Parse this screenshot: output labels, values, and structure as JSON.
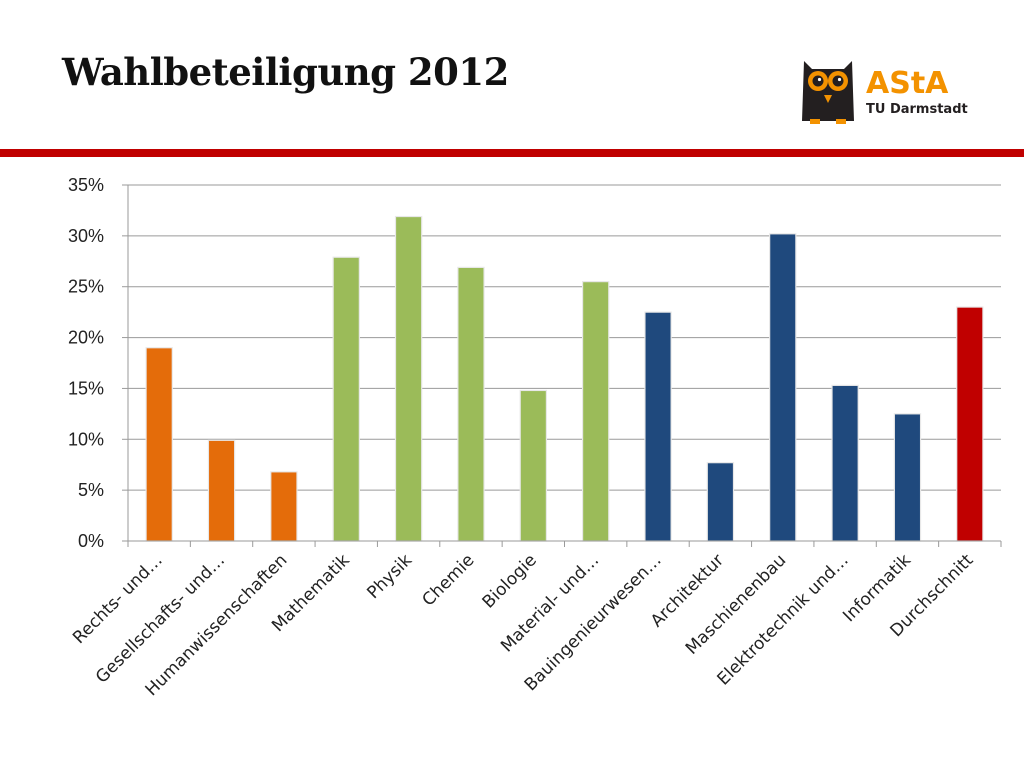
{
  "slide": {
    "title": "Wahlbeteiligung 2012"
  },
  "logo": {
    "wordmark": "AStA",
    "subtitle": "TU Darmstadt",
    "icon": "owl-icon",
    "colors": {
      "owl_body": "#231f20",
      "accent": "#f39200"
    }
  },
  "divider_color": "#c00000",
  "chart_data": {
    "type": "bar",
    "title": "",
    "xlabel": "",
    "ylabel": "",
    "ylim": [
      0,
      0.35
    ],
    "y_ticks": [
      0,
      0.05,
      0.1,
      0.15,
      0.2,
      0.25,
      0.3,
      0.35
    ],
    "y_tick_labels": [
      "0%",
      "5%",
      "10%",
      "15%",
      "20%",
      "25%",
      "30%",
      "35%"
    ],
    "grid": true,
    "legend": "none",
    "categories": [
      "Rechts- und…",
      "Gesellschafts- und…",
      "Humanwissenschaften",
      "Mathematik",
      "Physik",
      "Chemie",
      "Biologie",
      "Material- und…",
      "Bauingenieurwesen…",
      "Architektur",
      "Maschienenbau",
      "Elektrotechnik und…",
      "Informatik",
      "Durchschnitt"
    ],
    "values": [
      0.19,
      0.099,
      0.068,
      0.279,
      0.319,
      0.269,
      0.148,
      0.255,
      0.225,
      0.077,
      0.302,
      0.153,
      0.125,
      0.23
    ],
    "colors": [
      "#e46c0a",
      "#e46c0a",
      "#e46c0a",
      "#9bbb59",
      "#9bbb59",
      "#9bbb59",
      "#9bbb59",
      "#9bbb59",
      "#1f497d",
      "#1f497d",
      "#1f497d",
      "#1f497d",
      "#1f497d",
      "#c00000"
    ]
  }
}
